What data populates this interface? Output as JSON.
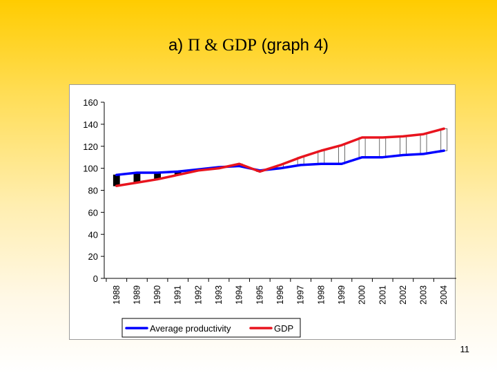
{
  "slide": {
    "title_prefix": "a) ",
    "title_symbols": "Π & GDP",
    "title_suffix": " (graph 4)",
    "page_number": "11"
  },
  "chart_data": {
    "type": "line",
    "title": "",
    "xlabel": "",
    "ylabel": "",
    "categories": [
      "1988",
      "1989",
      "1990",
      "1991",
      "1992",
      "1993",
      "1994",
      "1995",
      "1996",
      "1997",
      "1998",
      "1999",
      "2000",
      "2001",
      "2002",
      "2003",
      "2004"
    ],
    "ylim": [
      0,
      160
    ],
    "yticks": [
      0,
      20,
      40,
      60,
      80,
      100,
      120,
      140,
      160
    ],
    "grid": false,
    "legend_position": "bottom",
    "series": [
      {
        "name": "Average productivity",
        "color": "#0000ff",
        "values": [
          94,
          96,
          96,
          97,
          99,
          101,
          102,
          98,
          100,
          103,
          104,
          104,
          110,
          110,
          112,
          113,
          116
        ]
      },
      {
        "name": "GDP",
        "color": "#e8141e",
        "values": [
          84,
          87,
          90,
          94,
          98,
          100,
          104,
          97,
          103,
          110,
          116,
          121,
          128,
          128,
          129,
          131,
          136
        ]
      }
    ],
    "annotation": "gap bars between series: black where productivity > GDP, white where GDP > productivity"
  }
}
